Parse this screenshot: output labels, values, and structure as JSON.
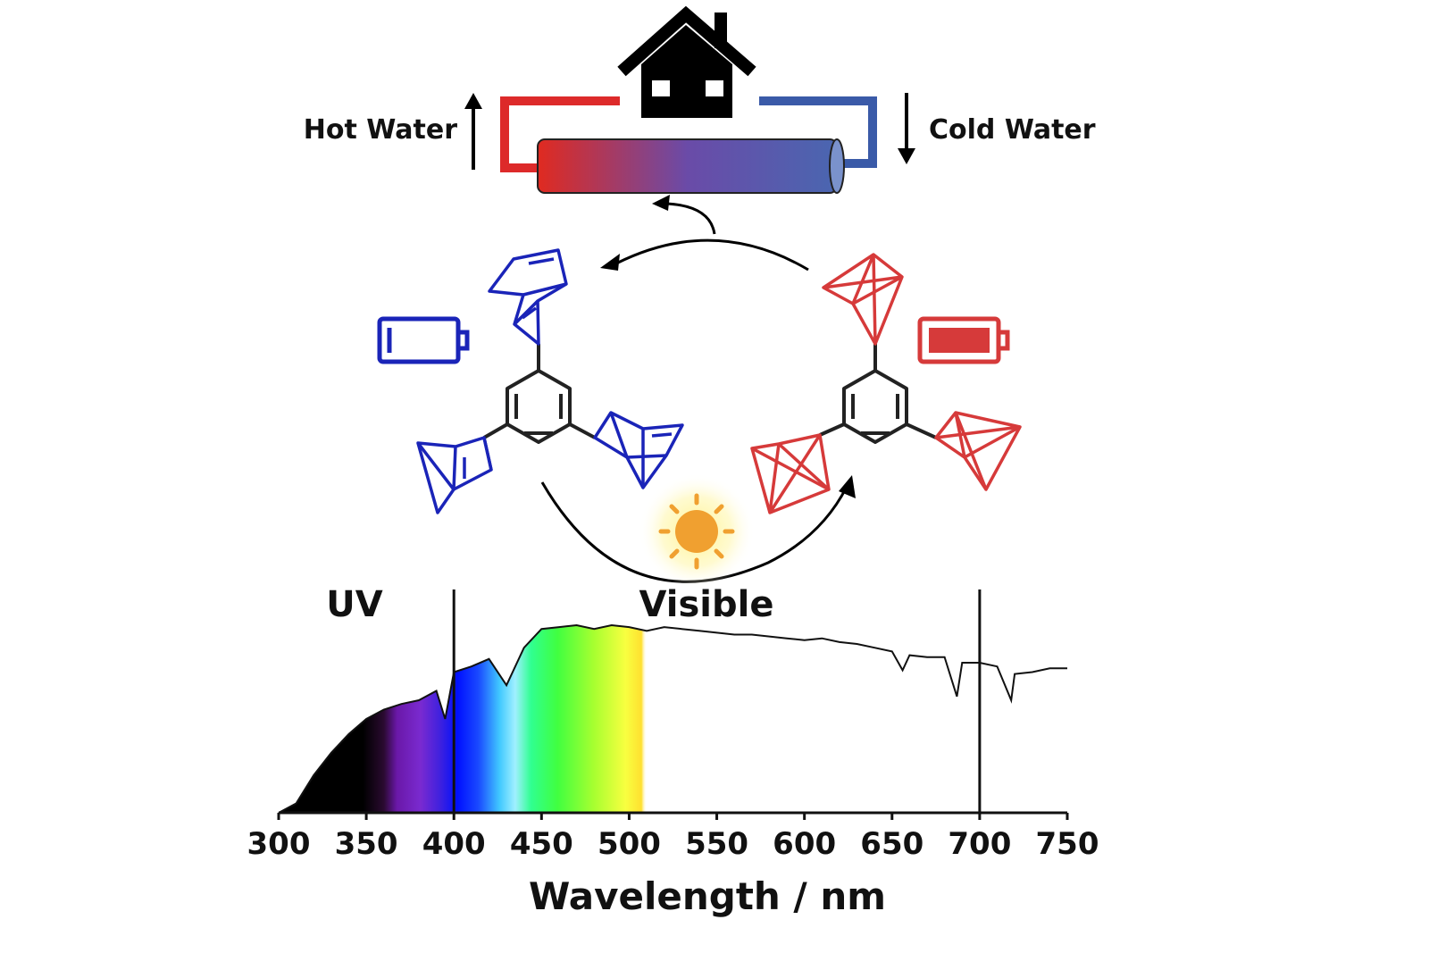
{
  "labels": {
    "hot_water": "Hot Water",
    "cold_water": "Cold Water",
    "uv": "UV",
    "visible": "Visible"
  },
  "chart_data": {
    "type": "area",
    "xlabel": "Wavelength / nm",
    "ylabel": "",
    "xlim": [
      300,
      750
    ],
    "x_ticks": [
      "300",
      "350",
      "400",
      "450",
      "500",
      "550",
      "600",
      "650",
      "700",
      "750"
    ],
    "region_boundaries_nm": [
      400,
      700
    ],
    "colored_fill_range_nm": [
      400,
      600
    ],
    "series": [
      {
        "x": [
          300,
          310,
          320,
          330,
          340,
          350,
          360,
          370,
          380,
          390,
          395,
          400,
          410,
          420,
          430,
          440,
          450,
          460,
          470,
          480,
          490,
          500,
          510,
          520,
          530,
          540,
          550,
          560,
          570,
          580,
          590,
          600,
          610,
          620,
          630,
          640,
          650,
          656,
          660,
          670,
          680,
          687,
          690,
          700,
          710,
          718,
          720,
          730,
          740,
          750
        ],
        "y": [
          0.0,
          0.05,
          0.2,
          0.32,
          0.42,
          0.5,
          0.55,
          0.58,
          0.6,
          0.65,
          0.5,
          0.75,
          0.78,
          0.82,
          0.68,
          0.88,
          0.98,
          0.99,
          1.0,
          0.98,
          1.0,
          0.99,
          0.97,
          0.99,
          0.98,
          0.97,
          0.96,
          0.95,
          0.95,
          0.94,
          0.93,
          0.92,
          0.93,
          0.91,
          0.9,
          0.88,
          0.86,
          0.76,
          0.84,
          0.83,
          0.83,
          0.62,
          0.8,
          0.8,
          0.78,
          0.6,
          0.74,
          0.75,
          0.77,
          0.77
        ]
      }
    ]
  },
  "icons": [
    "house-icon",
    "heat-exchanger-tube-icon",
    "empty-battery-icon",
    "full-battery-icon",
    "sun-icon"
  ],
  "colors": {
    "hot": "#dd2a2a",
    "cold": "#3a5aa8",
    "norbornadiene": "#1a24b8",
    "quadricyclane": "#d63a3a",
    "sun": "#f0a030"
  }
}
